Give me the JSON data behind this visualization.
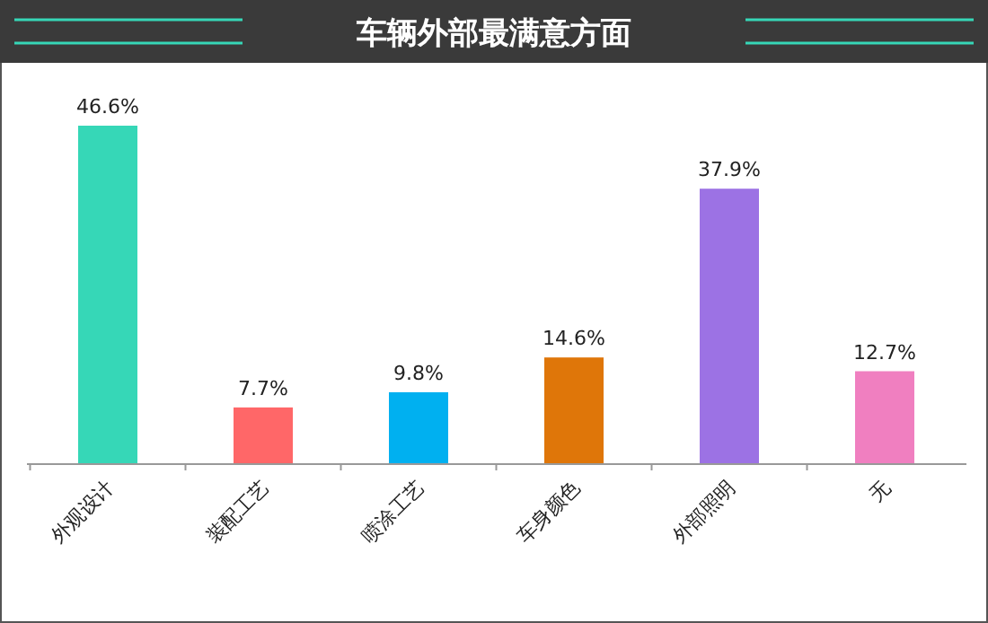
{
  "chart_data": {
    "type": "bar",
    "title": "车辆外部最满意方面",
    "categories": [
      "外观设计",
      "装配工艺",
      "喷涂工艺",
      "车身颜色",
      "外部照明",
      "无"
    ],
    "values": [
      46.6,
      7.7,
      9.8,
      14.6,
      37.9,
      12.7
    ],
    "colors": [
      "#36d7b7",
      "#ff6768",
      "#00b0f0",
      "#df7609",
      "#9c72e4",
      "#f07fc0"
    ],
    "value_labels": [
      "46.6%",
      "7.7%",
      "9.8%",
      "14.6%",
      "37.9%",
      "12.7%"
    ]
  }
}
